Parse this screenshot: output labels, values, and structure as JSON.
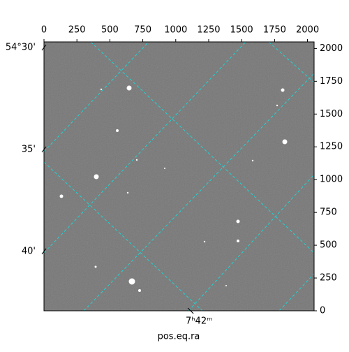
{
  "chart_data": {
    "type": "image",
    "xlabel": "pos.eq.ra",
    "xlim": [
      0,
      2050
    ],
    "ylim": [
      0,
      2050
    ],
    "xticks": [
      0,
      250,
      500,
      750,
      1000,
      1250,
      1500,
      1750,
      2000
    ],
    "yticks": [
      0,
      250,
      500,
      750,
      1000,
      1250,
      1500,
      1750,
      2000
    ],
    "dec_ticks": [
      {
        "value": 2007,
        "label": "54°30'"
      },
      {
        "value": 1230,
        "label": "35'"
      },
      {
        "value": 453,
        "label": "40'"
      }
    ],
    "ra_ticks": [
      {
        "value": 1113,
        "label": "7ʰ42ᵐ"
      }
    ]
  }
}
